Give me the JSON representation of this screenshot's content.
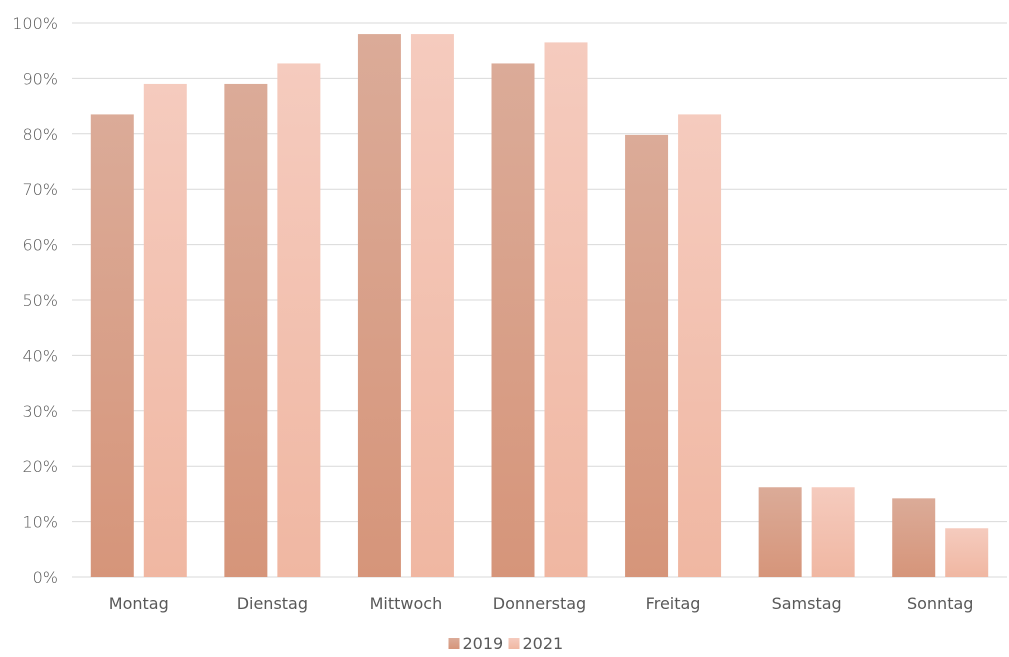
{
  "chart_data": {
    "type": "bar",
    "categories": [
      "Montag",
      "Dienstag",
      "Mittwoch",
      "Donnerstag",
      "Freitag",
      "Samstag",
      "Sonntag"
    ],
    "series": [
      {
        "name": "2019",
        "values": [
          83.5,
          89,
          98,
          92.7,
          79.8,
          16.2,
          14.2
        ],
        "color_top": "#dbab98",
        "color_bottom": "#d6957a"
      },
      {
        "name": "2021",
        "values": [
          89,
          92.7,
          98,
          96.5,
          83.5,
          16.2,
          8.8
        ],
        "color_top": "#f5cbbe",
        "color_bottom": "#f0b7a2"
      }
    ],
    "ylim": [
      0,
      100
    ],
    "yticks": [
      "0%",
      "10%",
      "20%",
      "30%",
      "40%",
      "50%",
      "60%",
      "70%",
      "80%",
      "90%",
      "100%"
    ],
    "grid": true,
    "legend_position": "bottom",
    "title": "",
    "xlabel": "",
    "ylabel": ""
  }
}
